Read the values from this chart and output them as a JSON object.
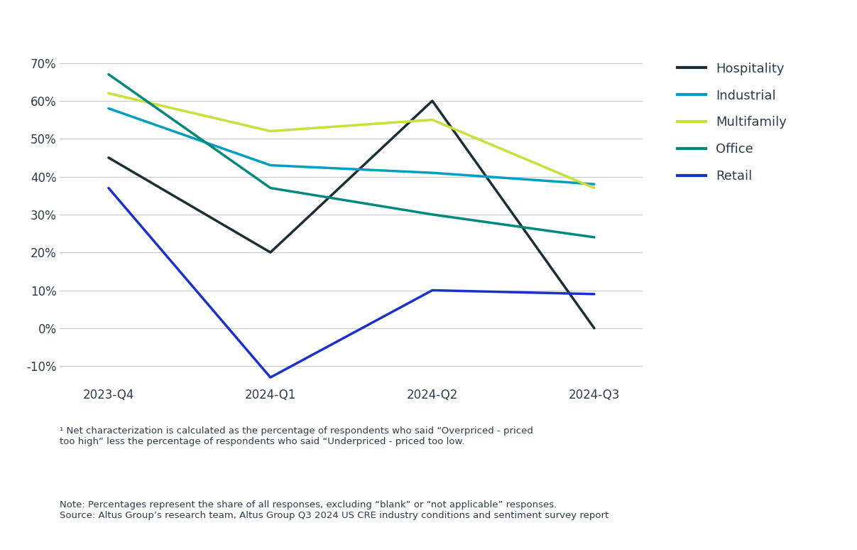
{
  "quarters": [
    "2023-Q4",
    "2024-Q1",
    "2024-Q2",
    "2024-Q3"
  ],
  "series": {
    "Hospitality": {
      "values": [
        45,
        20,
        60,
        0
      ],
      "color": "#1a2e35",
      "linewidth": 2.5
    },
    "Industrial": {
      "values": [
        58,
        43,
        41,
        38
      ],
      "color": "#009fc2",
      "linewidth": 2.5
    },
    "Multifamily": {
      "values": [
        62,
        52,
        55,
        37
      ],
      "color": "#c8e03a",
      "linewidth": 2.5
    },
    "Office": {
      "values": [
        67,
        37,
        30,
        24
      ],
      "color": "#00897b",
      "linewidth": 2.5
    },
    "Retail": {
      "values": [
        37,
        -13,
        10,
        9
      ],
      "color": "#1a32c8",
      "linewidth": 2.5
    }
  },
  "ylim": [
    -15,
    75
  ],
  "yticks": [
    -10,
    0,
    10,
    20,
    30,
    40,
    50,
    60,
    70
  ],
  "background_color": "#ffffff",
  "grid_color": "#c8c8c8",
  "legend_fontsize": 13,
  "tick_fontsize": 12,
  "footnote1": "¹ Net characterization is calculated as the percentage of respondents who said “Overpriced - priced\ntoo high” less the percentage of respondents who said “Underpriced - priced too low.",
  "footnote2": "Note: Percentages represent the share of all responses, excluding “blank” or “not applicable” responses.\nSource: Altus Group’s research team, Altus Group Q3 2024 US CRE industry conditions and sentiment survey report",
  "text_color": "#2d3a4a"
}
